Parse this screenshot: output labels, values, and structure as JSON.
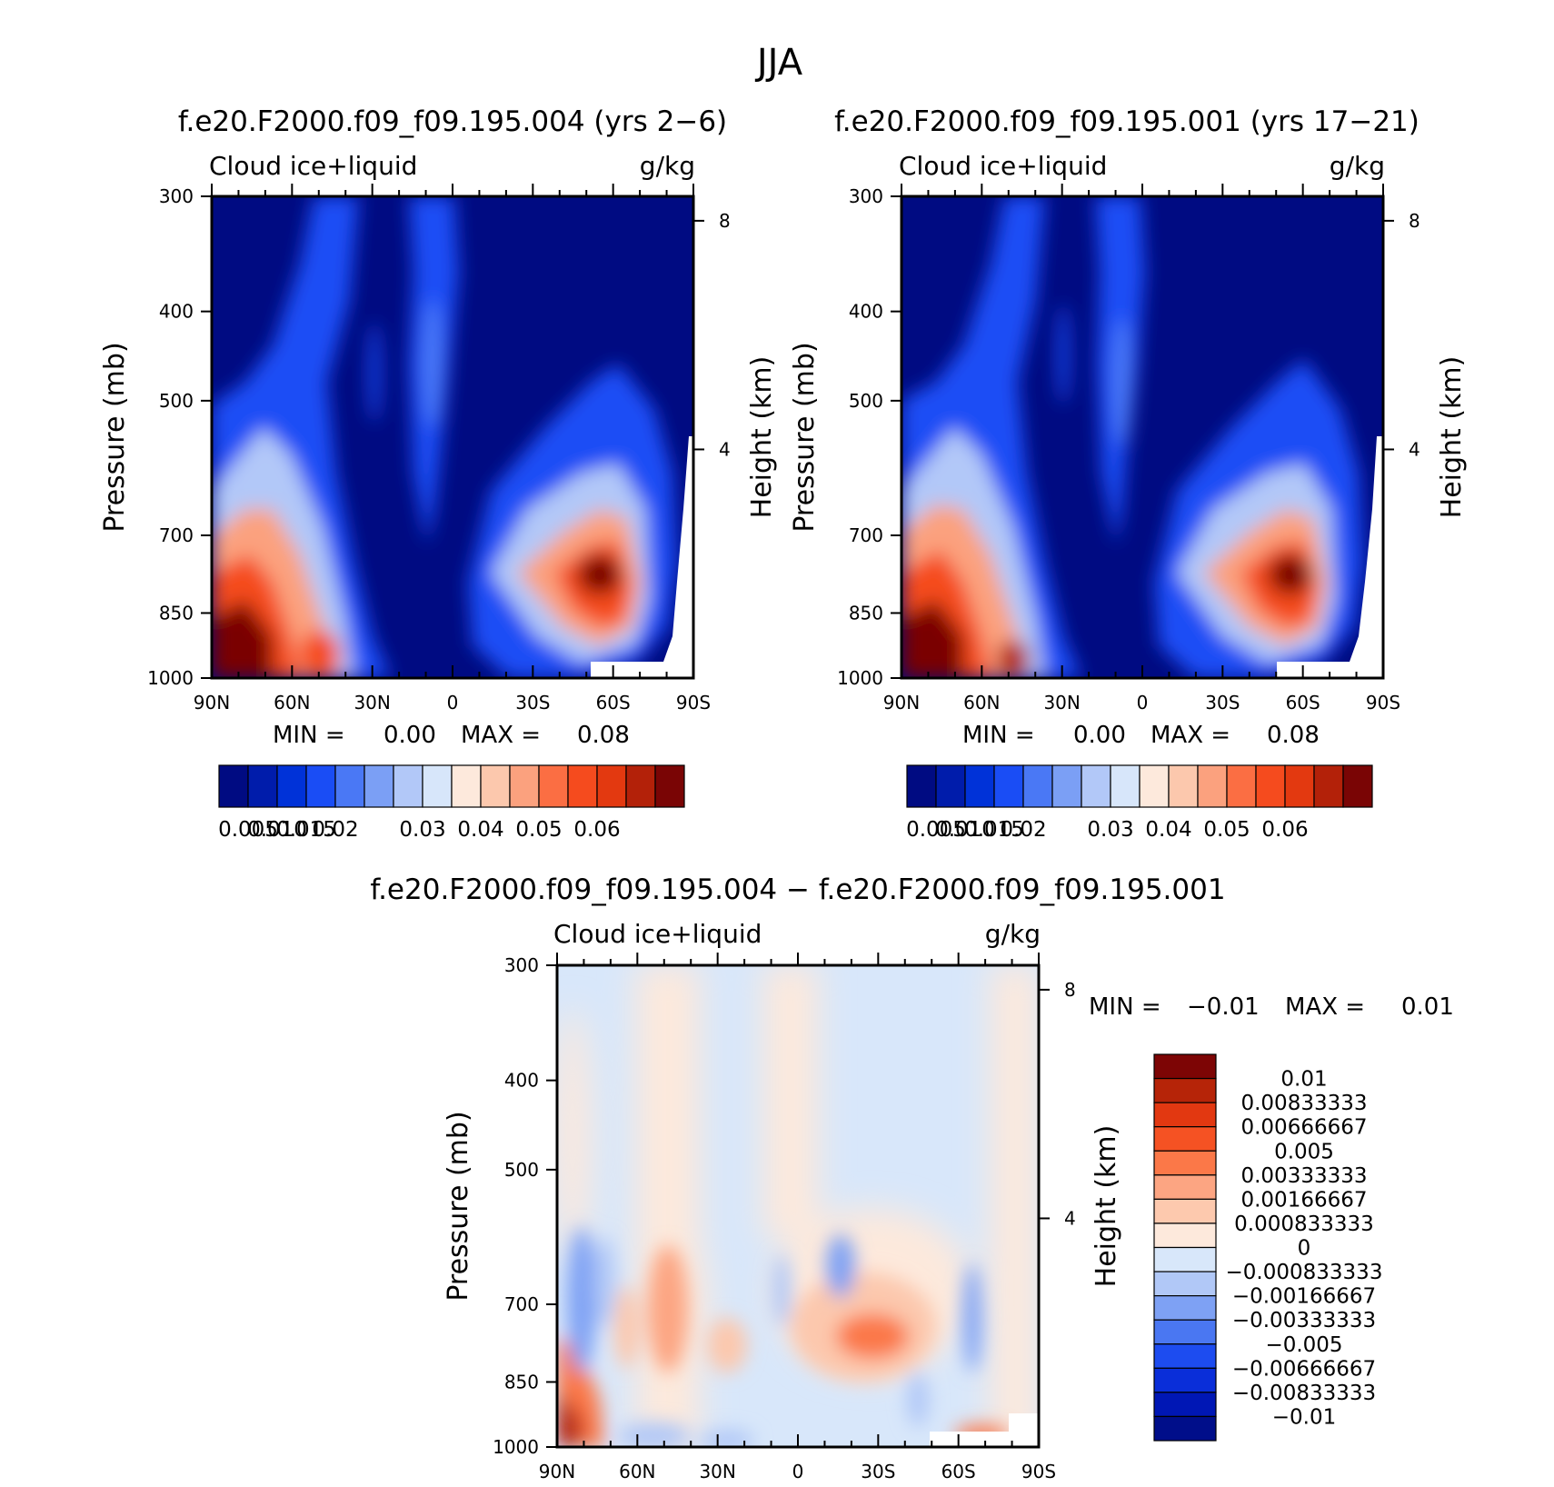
{
  "figure": {
    "title": "JJA"
  },
  "colors": {
    "abs_palette": [
      "#000b82",
      "#001cab",
      "#0032d8",
      "#1a4df5",
      "#4a78f5",
      "#7b9ff5",
      "#b2c8f8",
      "#d7e6fa",
      "#fde9dc",
      "#fcc8ad",
      "#fba17e",
      "#fb6e43",
      "#f54b1e",
      "#e33910",
      "#b32109",
      "#7a0505"
    ],
    "diff_palette": [
      "#000e8a",
      "#0017b5",
      "#0a2ed9",
      "#1d4cf0",
      "#4a77f2",
      "#7ea1f4",
      "#b1c8f7",
      "#d8e7fa",
      "#fde9dc",
      "#fdc9ae",
      "#fca582",
      "#fb7848",
      "#f55223",
      "#e23811",
      "#b62408",
      "#7d0505"
    ]
  },
  "panels": [
    {
      "id": "left",
      "title": "f.e20.F2000.f09_f09.195.004 (yrs 2−6)",
      "variable": "Cloud ice+liquid",
      "units": "g/kg",
      "min_max": {
        "min_label": "MIN =",
        "min": "0.00",
        "max_label": "MAX =",
        "max": "0.08"
      }
    },
    {
      "id": "right",
      "title": "f.e20.F2000.f09_f09.195.001 (yrs 17−21)",
      "variable": "Cloud ice+liquid",
      "units": "g/kg",
      "min_max": {
        "min_label": "MIN =",
        "min": "0.00",
        "max_label": "MAX =",
        "max": "0.08"
      }
    },
    {
      "id": "diff",
      "title": "f.e20.F2000.f09_f09.195.004 − f.e20.F2000.f09_f09.195.001",
      "variable": "Cloud ice+liquid",
      "units": "g/kg",
      "min_max": {
        "min_label": "MIN =",
        "min": "−0.01",
        "max_label": "MAX =",
        "max": "0.01"
      }
    }
  ],
  "chart_data": [
    {
      "type": "heatmap",
      "title": "f.e20.F2000.f09_f09.195.004 (yrs 2−6)",
      "subtitle": "Cloud ice+liquid",
      "units": "g/kg",
      "xlabel": "",
      "ylabel": "Pressure (mb)",
      "ylabel_right": "Height (km)",
      "xlim": [
        90,
        -90
      ],
      "x_ticks": [
        "90N",
        "60N",
        "30N",
        "0",
        "30S",
        "60S",
        "90S"
      ],
      "ylim": [
        1000,
        300
      ],
      "y_scale": "log",
      "y_ticks": [
        300,
        400,
        500,
        700,
        850,
        1000
      ],
      "y_ticks_right": [
        8,
        4
      ],
      "min": 0.0,
      "max": 0.08,
      "colorbar_labels": [
        "0.005",
        "0.010",
        "0.015",
        "0.02",
        "0.03",
        "0.04",
        "0.05",
        "0.06"
      ],
      "features": [
        {
          "lat": 75,
          "p": 970,
          "value": 0.07
        },
        {
          "lat": 65,
          "p": 860,
          "value": 0.045
        },
        {
          "lat": 45,
          "p": 960,
          "value": 0.05
        },
        {
          "lat": -52,
          "p": 850,
          "value": 0.075
        },
        {
          "lat": -58,
          "p": 840,
          "value": 0.08
        },
        {
          "lat": -45,
          "p": 870,
          "value": 0.055
        },
        {
          "lat": 8,
          "p": 560,
          "value": 0.01
        },
        {
          "lat": 30,
          "p": 520,
          "value": 0.006
        }
      ]
    },
    {
      "type": "heatmap",
      "title": "f.e20.F2000.f09_f09.195.001 (yrs 17−21)",
      "subtitle": "Cloud ice+liquid",
      "units": "g/kg",
      "xlabel": "",
      "ylabel": "Pressure (mb)",
      "ylabel_right": "Height (km)",
      "xlim": [
        90,
        -90
      ],
      "x_ticks": [
        "90N",
        "60N",
        "30N",
        "0",
        "30S",
        "60S",
        "90S"
      ],
      "ylim": [
        1000,
        300
      ],
      "y_scale": "log",
      "y_ticks": [
        300,
        400,
        500,
        700,
        850,
        1000
      ],
      "y_ticks_right": [
        8,
        4
      ],
      "min": 0.0,
      "max": 0.08,
      "colorbar_labels": [
        "0.005",
        "0.010",
        "0.015",
        "0.02",
        "0.03",
        "0.04",
        "0.05",
        "0.06"
      ],
      "features": [
        {
          "lat": 75,
          "p": 960,
          "value": 0.072
        },
        {
          "lat": 65,
          "p": 850,
          "value": 0.048
        },
        {
          "lat": 45,
          "p": 970,
          "value": 0.055
        },
        {
          "lat": -52,
          "p": 850,
          "value": 0.07
        },
        {
          "lat": -58,
          "p": 840,
          "value": 0.08
        },
        {
          "lat": 8,
          "p": 580,
          "value": 0.012
        }
      ]
    },
    {
      "type": "heatmap",
      "title": "f.e20.F2000.f09_f09.195.004 − f.e20.F2000.f09_f09.195.001",
      "subtitle": "Cloud ice+liquid",
      "units": "g/kg",
      "xlabel": "",
      "ylabel": "Pressure (mb)",
      "ylabel_right": "Height (km)",
      "xlim": [
        90,
        -90
      ],
      "x_ticks": [
        "90N",
        "60N",
        "30N",
        "0",
        "30S",
        "60S",
        "90S"
      ],
      "ylim": [
        1000,
        300
      ],
      "y_scale": "log",
      "y_ticks": [
        300,
        400,
        500,
        700,
        850,
        1000
      ],
      "y_ticks_right": [
        8,
        4
      ],
      "min": -0.01,
      "max": 0.01,
      "colorbar_labels": [
        "0.01",
        "0.00833333",
        "0.00666667",
        "0.005",
        "0.00333333",
        "0.00166667",
        "0.000833333",
        "0",
        "−0.000833333",
        "−0.00166667",
        "−0.00333333",
        "−0.005",
        "−0.00666667",
        "−0.00833333",
        "−0.01"
      ],
      "features": [
        {
          "lat": 85,
          "p": 960,
          "value": 0.01
        },
        {
          "lat": -28,
          "p": 850,
          "value": 0.006
        },
        {
          "lat": -38,
          "p": 850,
          "value": 0.005
        },
        {
          "lat": 55,
          "p": 800,
          "value": 0.003
        },
        {
          "lat": 80,
          "p": 760,
          "value": -0.004
        },
        {
          "lat": -18,
          "p": 720,
          "value": -0.004
        },
        {
          "lat": 3,
          "p": 780,
          "value": -0.003
        },
        {
          "lat": 45,
          "p": 990,
          "value": -0.003
        },
        {
          "lat": -65,
          "p": 860,
          "value": -0.004
        }
      ]
    }
  ]
}
